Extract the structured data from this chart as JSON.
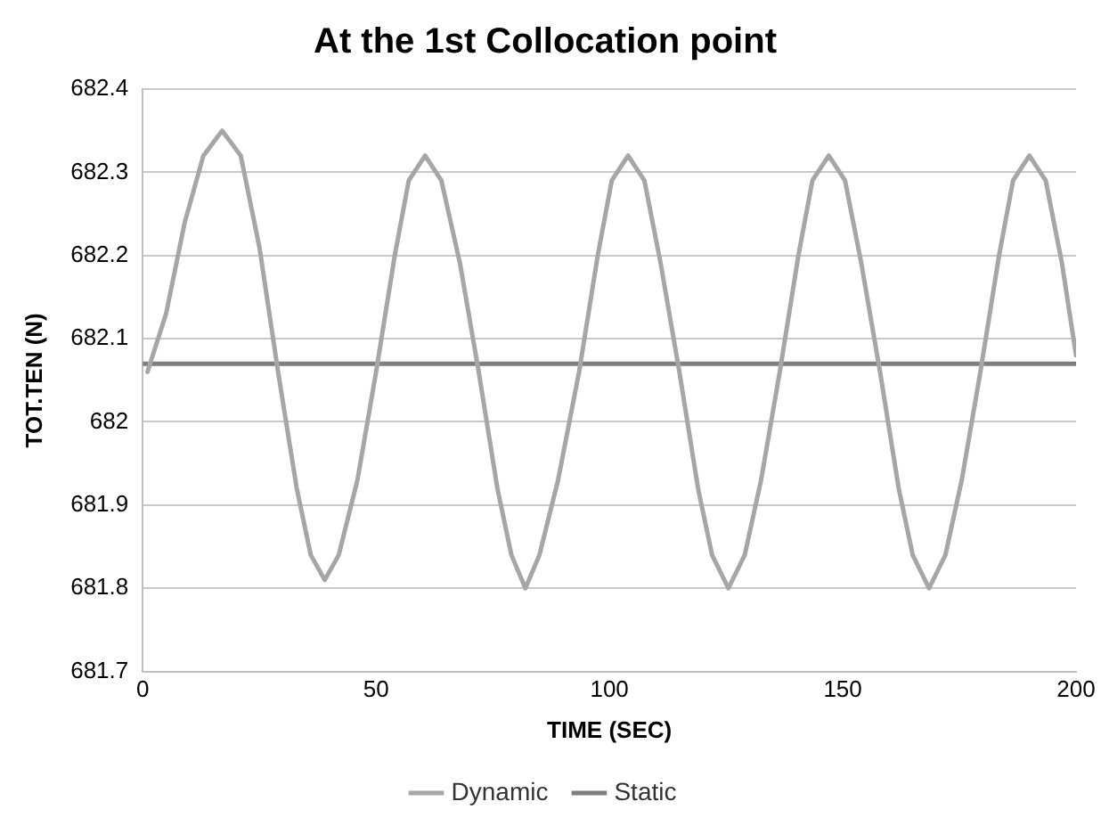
{
  "chart_data": {
    "type": "line",
    "title": "At the 1st Collocation point",
    "xlabel": "TIME (SEC)",
    "ylabel": "TOT.TEN (N)",
    "xlim": [
      0,
      200
    ],
    "xticks": [
      0,
      50,
      100,
      150,
      200
    ],
    "ylim": [
      681.7,
      682.4
    ],
    "yticks": [
      681.7,
      681.8,
      681.9,
      682,
      682.1,
      682.2,
      682.3,
      682.4
    ],
    "grid": "y",
    "legend": "bottom",
    "marker": "none",
    "line_style": "solid",
    "series": [
      {
        "name": "Dynamic",
        "color": "#a6a6a6",
        "x": [
          1,
          5,
          9,
          13,
          17,
          21,
          25,
          29,
          33,
          36,
          39,
          42,
          46,
          50,
          54,
          57,
          60.5,
          64,
          68,
          72,
          76,
          79,
          82,
          85,
          89,
          93.5,
          97.5,
          100.5,
          104,
          107.5,
          111,
          115,
          119,
          122,
          125.5,
          129,
          132.5,
          136.5,
          140.5,
          143.5,
          147,
          150.5,
          154,
          158,
          162,
          165,
          168.5,
          172,
          175.5,
          179.5,
          183.5,
          186.5,
          190,
          193.5,
          197,
          200
        ],
        "values": [
          682.06,
          682.13,
          682.24,
          682.32,
          682.35,
          682.32,
          682.21,
          682.06,
          681.92,
          681.84,
          681.81,
          681.84,
          681.93,
          682.06,
          682.2,
          682.29,
          682.32,
          682.29,
          682.19,
          682.06,
          681.92,
          681.84,
          681.8,
          681.84,
          681.93,
          682.06,
          682.2,
          682.29,
          682.32,
          682.29,
          682.19,
          682.06,
          681.92,
          681.84,
          681.8,
          681.84,
          681.93,
          682.06,
          682.2,
          682.29,
          682.32,
          682.29,
          682.19,
          682.06,
          681.92,
          681.84,
          681.8,
          681.84,
          681.93,
          682.06,
          682.2,
          682.29,
          682.32,
          682.29,
          682.19,
          682.08
        ]
      },
      {
        "name": "Static",
        "color": "#7f7f7f",
        "x": [
          0,
          200
        ],
        "values": [
          682.07,
          682.07
        ]
      }
    ]
  }
}
